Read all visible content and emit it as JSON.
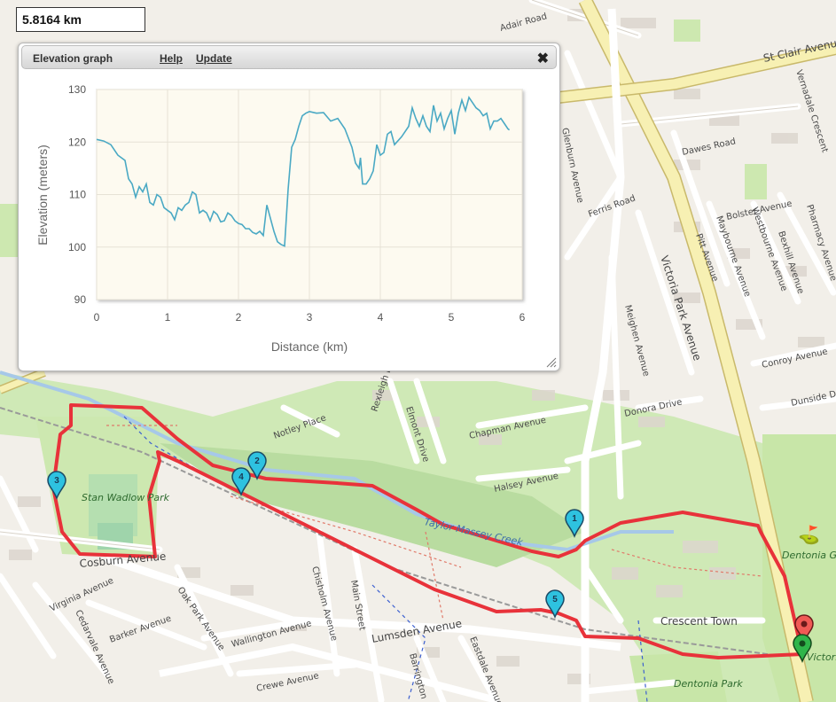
{
  "distance_readout": "5.8164 km",
  "elevation_panel": {
    "title": "Elevation graph",
    "help_label": "Help",
    "update_label": "Update",
    "close_icon": "close-icon"
  },
  "chart_data": {
    "type": "line",
    "title": "",
    "xlabel": "Distance (km)",
    "ylabel": "Elevation (meters)",
    "xlim": [
      0,
      6
    ],
    "ylim": [
      90,
      130
    ],
    "xticks": [
      0,
      1,
      2,
      3,
      4,
      5,
      6
    ],
    "yticks": [
      90,
      100,
      110,
      120,
      130
    ],
    "grid": true,
    "line_color": "#4aa9c4",
    "background_color": "#fdfaf0",
    "series": [
      {
        "x": [
          0,
          0.1,
          0.2,
          0.3,
          0.4,
          0.45,
          0.5,
          0.55,
          0.6,
          0.65,
          0.7,
          0.75,
          0.8,
          0.85,
          0.9,
          0.95,
          1.0,
          1.05,
          1.1,
          1.15,
          1.2,
          1.25,
          1.3,
          1.35,
          1.4,
          1.45,
          1.5,
          1.55,
          1.6,
          1.65,
          1.7,
          1.75,
          1.8,
          1.85,
          1.9,
          1.95,
          2.0,
          2.05,
          2.1,
          2.15,
          2.2,
          2.25,
          2.3,
          2.35,
          2.4,
          2.45,
          2.5,
          2.55,
          2.6,
          2.65,
          2.7,
          2.75,
          2.8,
          2.85,
          2.9,
          2.95,
          3.0,
          3.1,
          3.2,
          3.3,
          3.4,
          3.5,
          3.6,
          3.65,
          3.7,
          3.72,
          3.75,
          3.8,
          3.85,
          3.9,
          3.95,
          4.0,
          4.05,
          4.1,
          4.15,
          4.2,
          4.3,
          4.4,
          4.45,
          4.5,
          4.55,
          4.6,
          4.65,
          4.7,
          4.75,
          4.8,
          4.85,
          4.9,
          4.95,
          5.0,
          5.05,
          5.1,
          5.15,
          5.2,
          5.25,
          5.3,
          5.35,
          5.4,
          5.45,
          5.5,
          5.55,
          5.6,
          5.65,
          5.7,
          5.75,
          5.8,
          5.82
        ],
        "y": [
          120.5,
          120.2,
          119.5,
          117.5,
          116.5,
          113,
          112,
          109.5,
          111.5,
          110.5,
          112,
          108.5,
          108,
          110,
          109.5,
          107.5,
          107,
          106.5,
          105.2,
          107.5,
          107,
          108,
          108.5,
          110.5,
          110,
          106.5,
          107,
          106.5,
          105,
          106.8,
          106.2,
          104.8,
          105,
          106.5,
          106,
          105,
          104.5,
          104.3,
          103.5,
          103.5,
          102.8,
          102.5,
          103,
          102.2,
          108,
          105.5,
          103,
          101,
          100.5,
          100.2,
          111,
          119,
          120.5,
          123,
          125,
          125.5,
          125.8,
          125.5,
          125.6,
          124,
          124.5,
          122.5,
          119,
          116,
          115,
          117,
          112,
          112,
          113,
          114.5,
          119.5,
          117.5,
          118,
          121.5,
          122,
          119.5,
          121,
          123,
          126.5,
          124.5,
          123,
          125,
          123,
          122,
          127,
          124,
          125.5,
          122.5,
          124.5,
          126,
          121.5,
          125.5,
          128,
          126,
          128.5,
          127.5,
          126.5,
          126,
          125,
          125.5,
          122.5,
          124,
          124,
          124.5,
          123.5,
          122.5,
          122.3
        ]
      }
    ]
  },
  "route_markers": [
    "1",
    "2",
    "3",
    "4",
    "5"
  ],
  "map_labels": {
    "streets": [
      "Adair Road",
      "St Clair Avenue",
      "Dawes Road",
      "Victoria Park Avenue",
      "Ferris Road",
      "Glenburn Avenue",
      "Bolster Avenue",
      "Pharmacy Avenue",
      "Westbourne Avenue",
      "Maybourne Avenue",
      "Pitt Avenue",
      "Meighen Avenue",
      "Bexhill Avenue",
      "Vernadale Crescent",
      "Conroy Avenue",
      "Donora Drive",
      "Dunside Drive",
      "Chapman Avenue",
      "Halsey Avenue",
      "Notley Place",
      "Elmont Drive",
      "Rexleigh Drive",
      "Cosburn Avenue",
      "Virginia Avenue",
      "Cedarvale Avenue",
      "Oak Park Avenue",
      "Barker Avenue",
      "Wallington Avenue",
      "Chisholm Avenue",
      "Main Street",
      "Barrington Avenue",
      "Eastdale Avenue",
      "Lumsden Avenue",
      "Crewe Avenue"
    ],
    "parks": [
      "Stan Wadlow Park",
      "Dentonia Golf Course",
      "Dentonia Park",
      "Crescent Town",
      "Victoria Park"
    ],
    "water": "Taylor Massey Creek"
  }
}
